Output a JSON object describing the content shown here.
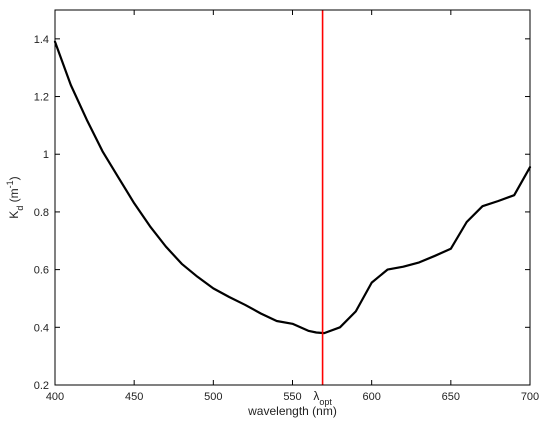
{
  "chart_data": {
    "type": "line",
    "xlabel": "wavelength (nm)",
    "ylabel": {
      "main": "K",
      "sub": "d",
      "unit_open": " (m",
      "unit_sup": "-1",
      "unit_close": ")"
    },
    "xlim": [
      400,
      700
    ],
    "ylim": [
      0.2,
      1.5
    ],
    "xticks": [
      400,
      450,
      500,
      550,
      600,
      650,
      700
    ],
    "xtick_labels": [
      "400",
      "450",
      "500",
      "550",
      "600",
      "650",
      "700"
    ],
    "yticks": [
      0.2,
      0.4,
      0.6,
      0.8,
      1.0,
      1.2,
      1.4
    ],
    "ytick_labels": [
      "0.2",
      "0.4",
      "0.6",
      "0.8",
      "1",
      "1.2",
      "1.4"
    ],
    "grid": false,
    "series": [
      {
        "color": "#000000",
        "x": [
          400,
          410,
          420,
          430,
          440,
          450,
          460,
          470,
          480,
          490,
          500,
          510,
          520,
          530,
          540,
          550,
          555,
          560,
          565,
          570,
          580,
          590,
          600,
          610,
          620,
          630,
          640,
          650,
          660,
          670,
          680,
          690,
          700
        ],
        "y": [
          1.39,
          1.24,
          1.12,
          1.01,
          0.92,
          0.83,
          0.75,
          0.68,
          0.62,
          0.575,
          0.535,
          0.505,
          0.478,
          0.448,
          0.422,
          0.412,
          0.4,
          0.388,
          0.382,
          0.38,
          0.4,
          0.455,
          0.555,
          0.6,
          0.61,
          0.625,
          0.648,
          0.672,
          0.765,
          0.82,
          0.838,
          0.858,
          0.955
        ]
      }
    ],
    "vline": {
      "x": 569,
      "color": "#ff0000",
      "label_main": "λ",
      "label_sub": "opt"
    }
  }
}
